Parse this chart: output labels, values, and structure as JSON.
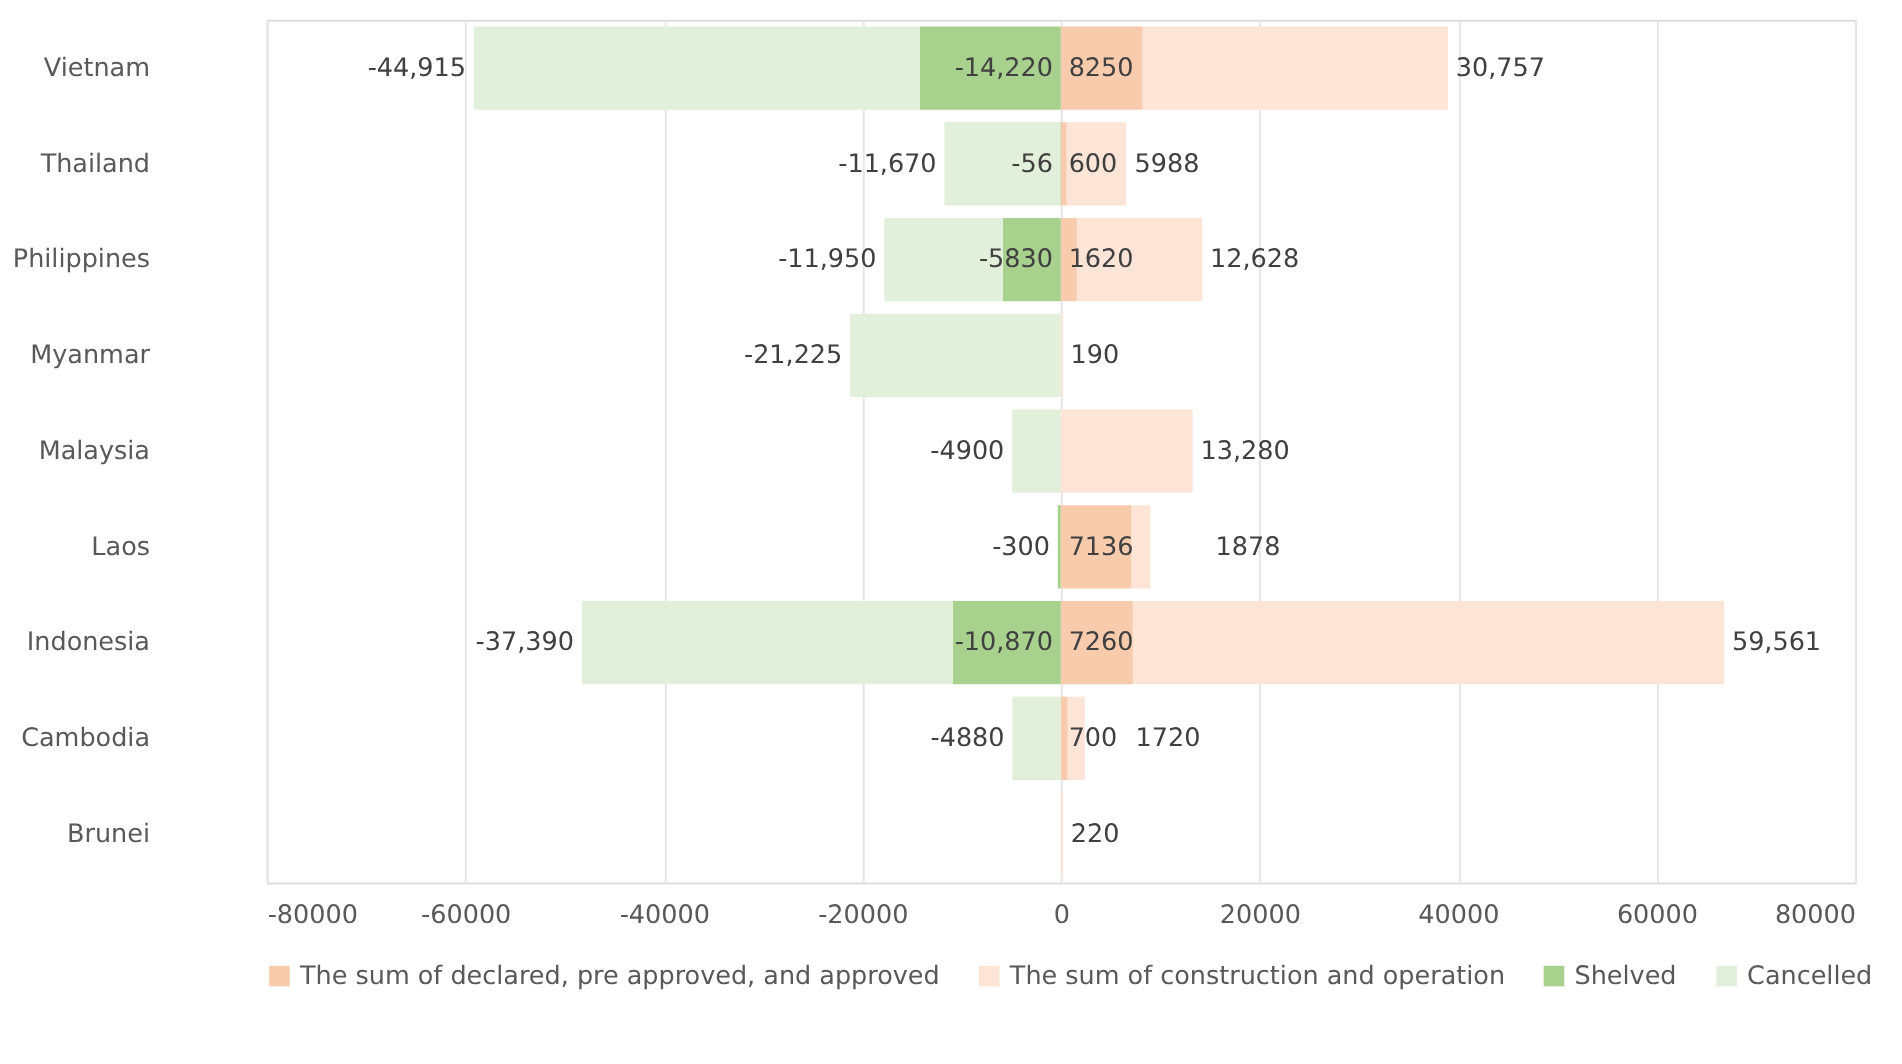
{
  "chart_data": {
    "type": "bar",
    "orientation": "horizontal",
    "stacked": true,
    "categories": [
      "Vietnam",
      "Thailand",
      "Philippines",
      "Myanmar",
      "Malaysia",
      "Laos",
      "Indonesia",
      "Cambodia",
      "Brunei"
    ],
    "series": [
      {
        "name": "The sum of declared, pre approved, and approved",
        "color": "#f8cbad",
        "values": [
          8250,
          600,
          1620,
          null,
          null,
          7136,
          7260,
          700,
          null
        ],
        "value_labels": [
          "8250",
          "600",
          "1620",
          null,
          null,
          "7136",
          "7260",
          "700",
          null
        ]
      },
      {
        "name": "The sum of construction and operation",
        "color": "#fce4d6",
        "values": [
          30757,
          5988,
          12628,
          190,
          13280,
          1878,
          59561,
          1720,
          220
        ],
        "value_labels": [
          "30,757",
          "5988",
          "12,628",
          "190",
          "13,280",
          "1878",
          "59,561",
          "1720",
          "220"
        ]
      },
      {
        "name": "Shelved",
        "color": "#a9d18e",
        "values": [
          -14220,
          -56,
          -5830,
          null,
          null,
          -300,
          -10870,
          null,
          null
        ],
        "value_labels": [
          "-14,220",
          "-56",
          "-5830",
          null,
          null,
          "-300",
          "-10,870",
          null,
          null
        ]
      },
      {
        "name": "Cancelled",
        "color": "#e2efda",
        "values": [
          -44915,
          -11670,
          -11950,
          -21225,
          -4900,
          null,
          -37390,
          -4880,
          null
        ],
        "value_labels": [
          "-44,915",
          "-11,670",
          "-11,950",
          "-21,225",
          "-4900",
          null,
          "-37,390",
          "-4880",
          null
        ]
      }
    ],
    "xlim": [
      -80000,
      80000
    ],
    "xticks": [
      -80000,
      -60000,
      -40000,
      -20000,
      0,
      20000,
      40000,
      60000,
      80000
    ],
    "grid": "x",
    "legend": "bottom"
  }
}
